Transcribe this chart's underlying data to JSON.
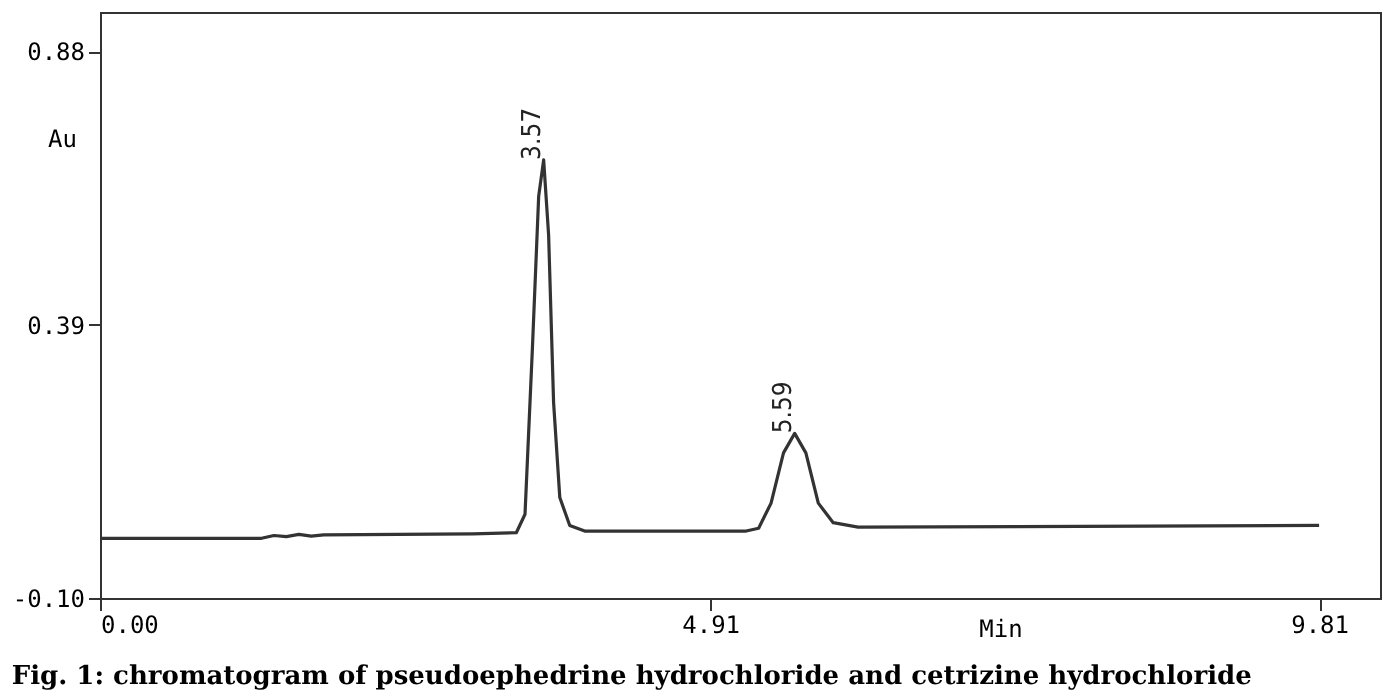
{
  "chart_data": {
    "type": "line",
    "title": "Fig. 1: chromatogram of  pseudoephedrine hydrochloride and cetrizine hydrochloride",
    "xlabel": "Min",
    "ylabel": "Au",
    "x": [
      0,
      1.3,
      1.4,
      1.5,
      1.6,
      1.7,
      1.8,
      3.0,
      3.35,
      3.42,
      3.48,
      3.53,
      3.57,
      3.61,
      3.65,
      3.7,
      3.78,
      3.9,
      5.2,
      5.3,
      5.4,
      5.5,
      5.59,
      5.68,
      5.78,
      5.9,
      6.1,
      9.81
    ],
    "series": [
      {
        "color": "#333333",
        "values": [
          0.007,
          0.007,
          0.012,
          0.01,
          0.014,
          0.011,
          0.013,
          0.015,
          0.017,
          0.05,
          0.35,
          0.62,
          0.685,
          0.55,
          0.25,
          0.08,
          0.03,
          0.02,
          0.02,
          0.025,
          0.07,
          0.16,
          0.195,
          0.16,
          0.07,
          0.035,
          0.027,
          0.03
        ]
      }
    ],
    "annotations": [
      {
        "text": "3.57",
        "x": 3.57,
        "y": 0.685
      },
      {
        "text": "5.59",
        "x": 5.59,
        "y": 0.195
      }
    ],
    "xlim": [
      0,
      10.3
    ],
    "ylim": [
      -0.1,
      0.95
    ],
    "xticks": [
      {
        "value": 0,
        "label": "0.00"
      },
      4.91,
      9.81
    ],
    "yticks": [
      {
        "value": -0.1,
        "label": "-0.10"
      },
      0.39,
      0.88
    ],
    "grid": false,
    "marker": "none",
    "line_style": "solid"
  }
}
